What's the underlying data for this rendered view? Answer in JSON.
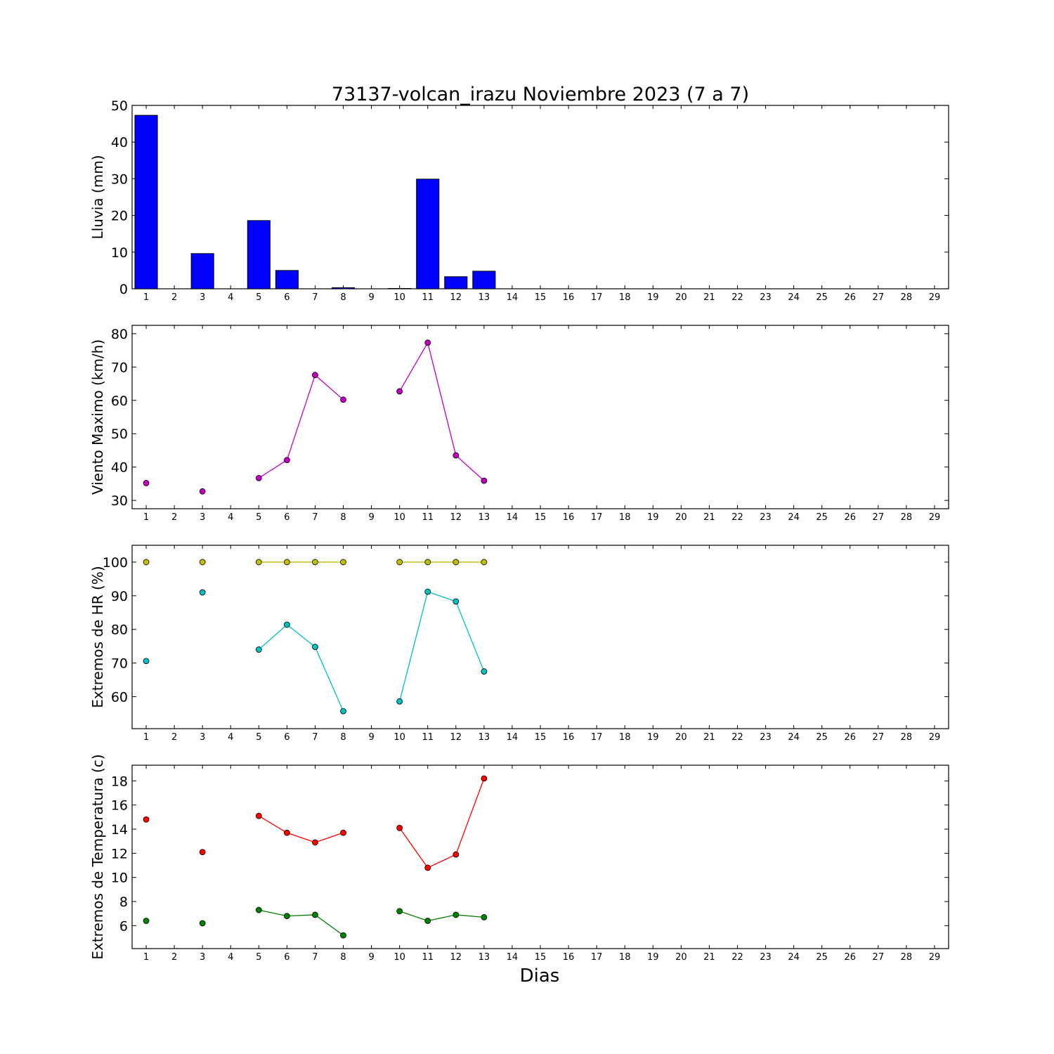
{
  "title": "73137-volcan_irazu Noviembre 2023  (7 a 7)",
  "xlabel": "Dias",
  "chart_data": [
    {
      "type": "bar",
      "ylabel": "Lluvia (mm)",
      "x": [
        1,
        2,
        3,
        4,
        5,
        6,
        7,
        8,
        9,
        10,
        11,
        12,
        13
      ],
      "values": [
        47.3,
        0,
        9.6,
        0,
        18.6,
        5.0,
        0,
        0.3,
        0,
        0.1,
        29.9,
        3.3,
        4.8
      ],
      "ylim": [
        0,
        50
      ],
      "yticks": [
        0,
        10,
        20,
        30,
        40,
        50
      ],
      "xlim": [
        0.5,
        29.5
      ],
      "xticks": [
        1,
        2,
        3,
        4,
        5,
        6,
        7,
        8,
        9,
        10,
        11,
        12,
        13,
        14,
        15,
        16,
        17,
        18,
        19,
        20,
        21,
        22,
        23,
        24,
        25,
        26,
        27,
        28,
        29
      ],
      "color": "#0000ff"
    },
    {
      "type": "line",
      "ylabel": "Viento Maximo (km/h)",
      "x": [
        1,
        2,
        3,
        4,
        5,
        6,
        7,
        8,
        9,
        10,
        11,
        12,
        13
      ],
      "ylim": [
        27.5,
        82.5
      ],
      "yticks": [
        30,
        40,
        50,
        60,
        70,
        80
      ],
      "xlim": [
        0.5,
        29.5
      ],
      "xticks": [
        1,
        2,
        3,
        4,
        5,
        6,
        7,
        8,
        9,
        10,
        11,
        12,
        13,
        14,
        15,
        16,
        17,
        18,
        19,
        20,
        21,
        22,
        23,
        24,
        25,
        26,
        27,
        28,
        29
      ],
      "series": [
        {
          "color": "#bf00bf",
          "values": [
            35.2,
            null,
            32.7,
            null,
            36.7,
            42.1,
            67.6,
            60.2,
            null,
            62.7,
            77.3,
            43.5,
            35.9
          ]
        }
      ]
    },
    {
      "type": "line",
      "ylabel": "Extremos de HR (%)",
      "x": [
        1,
        2,
        3,
        4,
        5,
        6,
        7,
        8,
        9,
        10,
        11,
        12,
        13
      ],
      "ylim": [
        50.5,
        105
      ],
      "yticks": [
        60,
        70,
        80,
        90,
        100
      ],
      "xlim": [
        0.5,
        29.5
      ],
      "xticks": [
        1,
        2,
        3,
        4,
        5,
        6,
        7,
        8,
        9,
        10,
        11,
        12,
        13,
        14,
        15,
        16,
        17,
        18,
        19,
        20,
        21,
        22,
        23,
        24,
        25,
        26,
        27,
        28,
        29
      ],
      "series": [
        {
          "color": "#bfbf00",
          "values": [
            100,
            null,
            100,
            null,
            100,
            100,
            100,
            100,
            null,
            100,
            100,
            100,
            100
          ]
        },
        {
          "color": "#00bfbf",
          "values": [
            70.6,
            null,
            91.0,
            null,
            74.0,
            81.4,
            74.8,
            55.7,
            null,
            58.6,
            91.2,
            88.3,
            67.5
          ]
        }
      ]
    },
    {
      "type": "line",
      "ylabel": "Extremos de Temperatura (c)",
      "x": [
        1,
        2,
        3,
        4,
        5,
        6,
        7,
        8,
        9,
        10,
        11,
        12,
        13
      ],
      "ylim": [
        4.1,
        19.3
      ],
      "yticks": [
        6,
        8,
        10,
        12,
        14,
        16,
        18
      ],
      "xlim": [
        0.5,
        29.5
      ],
      "xticks": [
        1,
        2,
        3,
        4,
        5,
        6,
        7,
        8,
        9,
        10,
        11,
        12,
        13,
        14,
        15,
        16,
        17,
        18,
        19,
        20,
        21,
        22,
        23,
        24,
        25,
        26,
        27,
        28,
        29
      ],
      "series": [
        {
          "color": "#ff0000",
          "values": [
            14.8,
            null,
            12.1,
            null,
            15.1,
            13.7,
            12.9,
            13.7,
            null,
            14.1,
            10.8,
            11.9,
            18.2
          ]
        },
        {
          "color": "#008000",
          "values": [
            6.4,
            null,
            6.2,
            null,
            7.3,
            6.8,
            6.9,
            5.2,
            null,
            7.2,
            6.4,
            6.9,
            6.7
          ]
        }
      ]
    }
  ]
}
